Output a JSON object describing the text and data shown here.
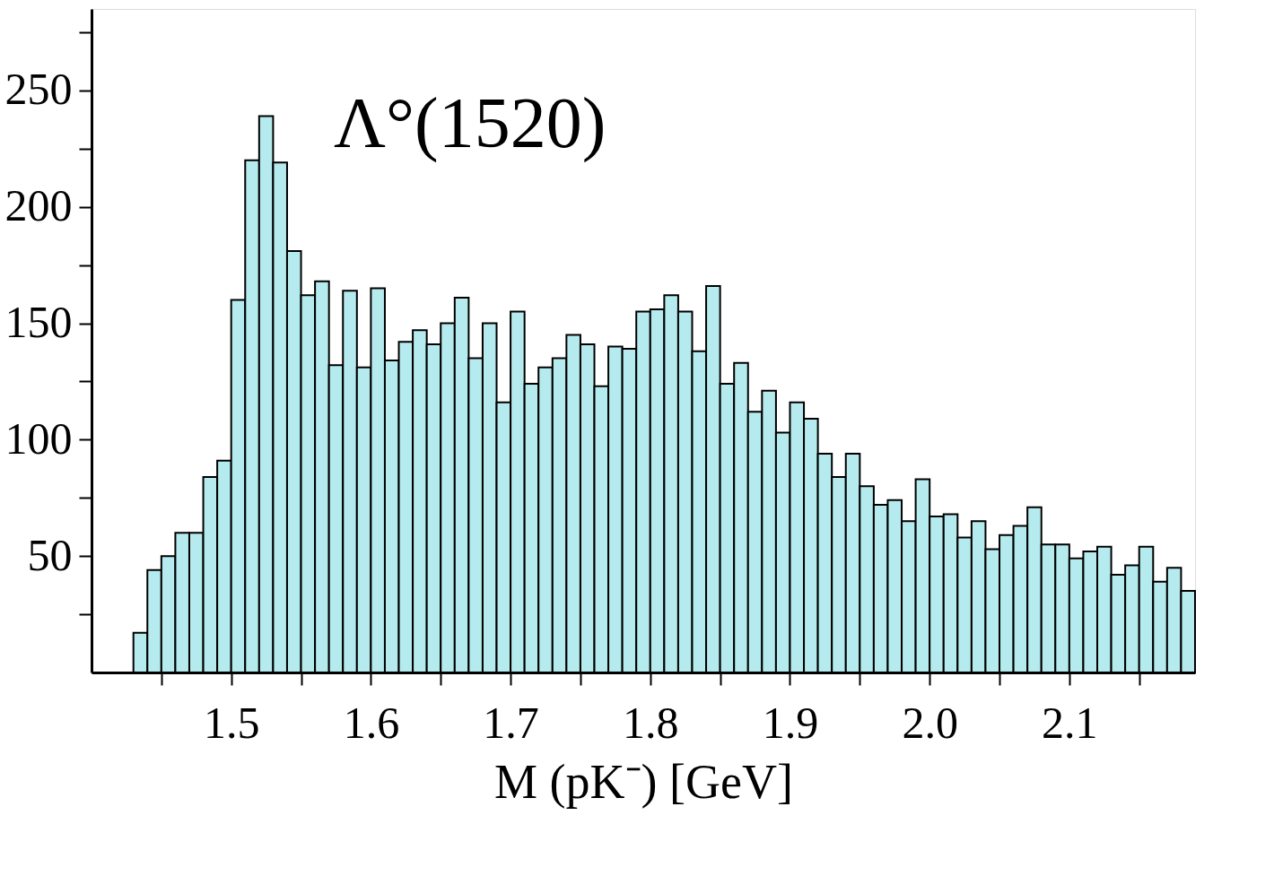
{
  "chart_data": {
    "type": "histogram",
    "xlabel": "M (pK⁻) [GeV]",
    "annotations": [
      "Λ°(1520)"
    ],
    "color": "#b5ebee",
    "bins": [
      1.43,
      1.44,
      1.45,
      1.46,
      1.47,
      1.48,
      1.49,
      1.5,
      1.51,
      1.52,
      1.53,
      1.54,
      1.55,
      1.56,
      1.57,
      1.58,
      1.59,
      1.6,
      1.61,
      1.62,
      1.63,
      1.64,
      1.65,
      1.66,
      1.67,
      1.68,
      1.69,
      1.7,
      1.71,
      1.72,
      1.73,
      1.74,
      1.75,
      1.76,
      1.77,
      1.78,
      1.79,
      1.8,
      1.81,
      1.82,
      1.83,
      1.84,
      1.85,
      1.86,
      1.87,
      1.88,
      1.89,
      1.9,
      1.91,
      1.92,
      1.93,
      1.94,
      1.95,
      1.96,
      1.97,
      1.98,
      1.99,
      2.0,
      2.01,
      2.02,
      2.03,
      2.04,
      2.05,
      2.06,
      2.07,
      2.08,
      2.09,
      2.1,
      2.11,
      2.12,
      2.13,
      2.14,
      2.15,
      2.16,
      2.17,
      2.18,
      2.19
    ],
    "values": [
      17,
      44,
      50,
      60,
      60,
      84,
      91,
      160,
      220,
      239,
      219,
      181,
      162,
      168,
      132,
      164,
      131,
      165,
      134,
      142,
      147,
      141,
      150,
      161,
      135,
      150,
      116,
      155,
      124,
      131,
      135,
      145,
      141,
      123,
      140,
      139,
      155,
      156,
      162,
      155,
      138,
      166,
      124,
      133,
      112,
      121,
      103,
      116,
      109,
      94,
      84,
      94,
      80,
      72,
      74,
      65,
      83,
      67,
      68,
      58,
      65,
      53,
      59,
      63,
      71,
      55,
      55,
      49,
      52,
      54,
      42,
      46,
      54,
      39,
      45,
      35
    ],
    "xlim": [
      1.4,
      2.19
    ],
    "ylim": [
      0,
      285
    ],
    "xticks": [
      {
        "value": 1.45,
        "label": null
      },
      {
        "value": 1.5,
        "label": "1.5"
      },
      {
        "value": 1.55,
        "label": null
      },
      {
        "value": 1.6,
        "label": "1.6"
      },
      {
        "value": 1.65,
        "label": null
      },
      {
        "value": 1.7,
        "label": "1.7"
      },
      {
        "value": 1.75,
        "label": null
      },
      {
        "value": 1.8,
        "label": "1.8"
      },
      {
        "value": 1.85,
        "label": null
      },
      {
        "value": 1.9,
        "label": "1.9"
      },
      {
        "value": 1.95,
        "label": null
      },
      {
        "value": 2.0,
        "label": "2.0"
      },
      {
        "value": 2.05,
        "label": null
      },
      {
        "value": 2.1,
        "label": "2.1"
      },
      {
        "value": 2.15,
        "label": null
      }
    ],
    "yticks": [
      {
        "value": 25,
        "label": null
      },
      50,
      {
        "value": 75,
        "label": null
      },
      100,
      {
        "value": 125,
        "label": null
      },
      150,
      {
        "value": 175,
        "label": null
      },
      200,
      {
        "value": 225,
        "label": null
      },
      250,
      {
        "value": 275,
        "label": null
      }
    ],
    "grid": false
  }
}
